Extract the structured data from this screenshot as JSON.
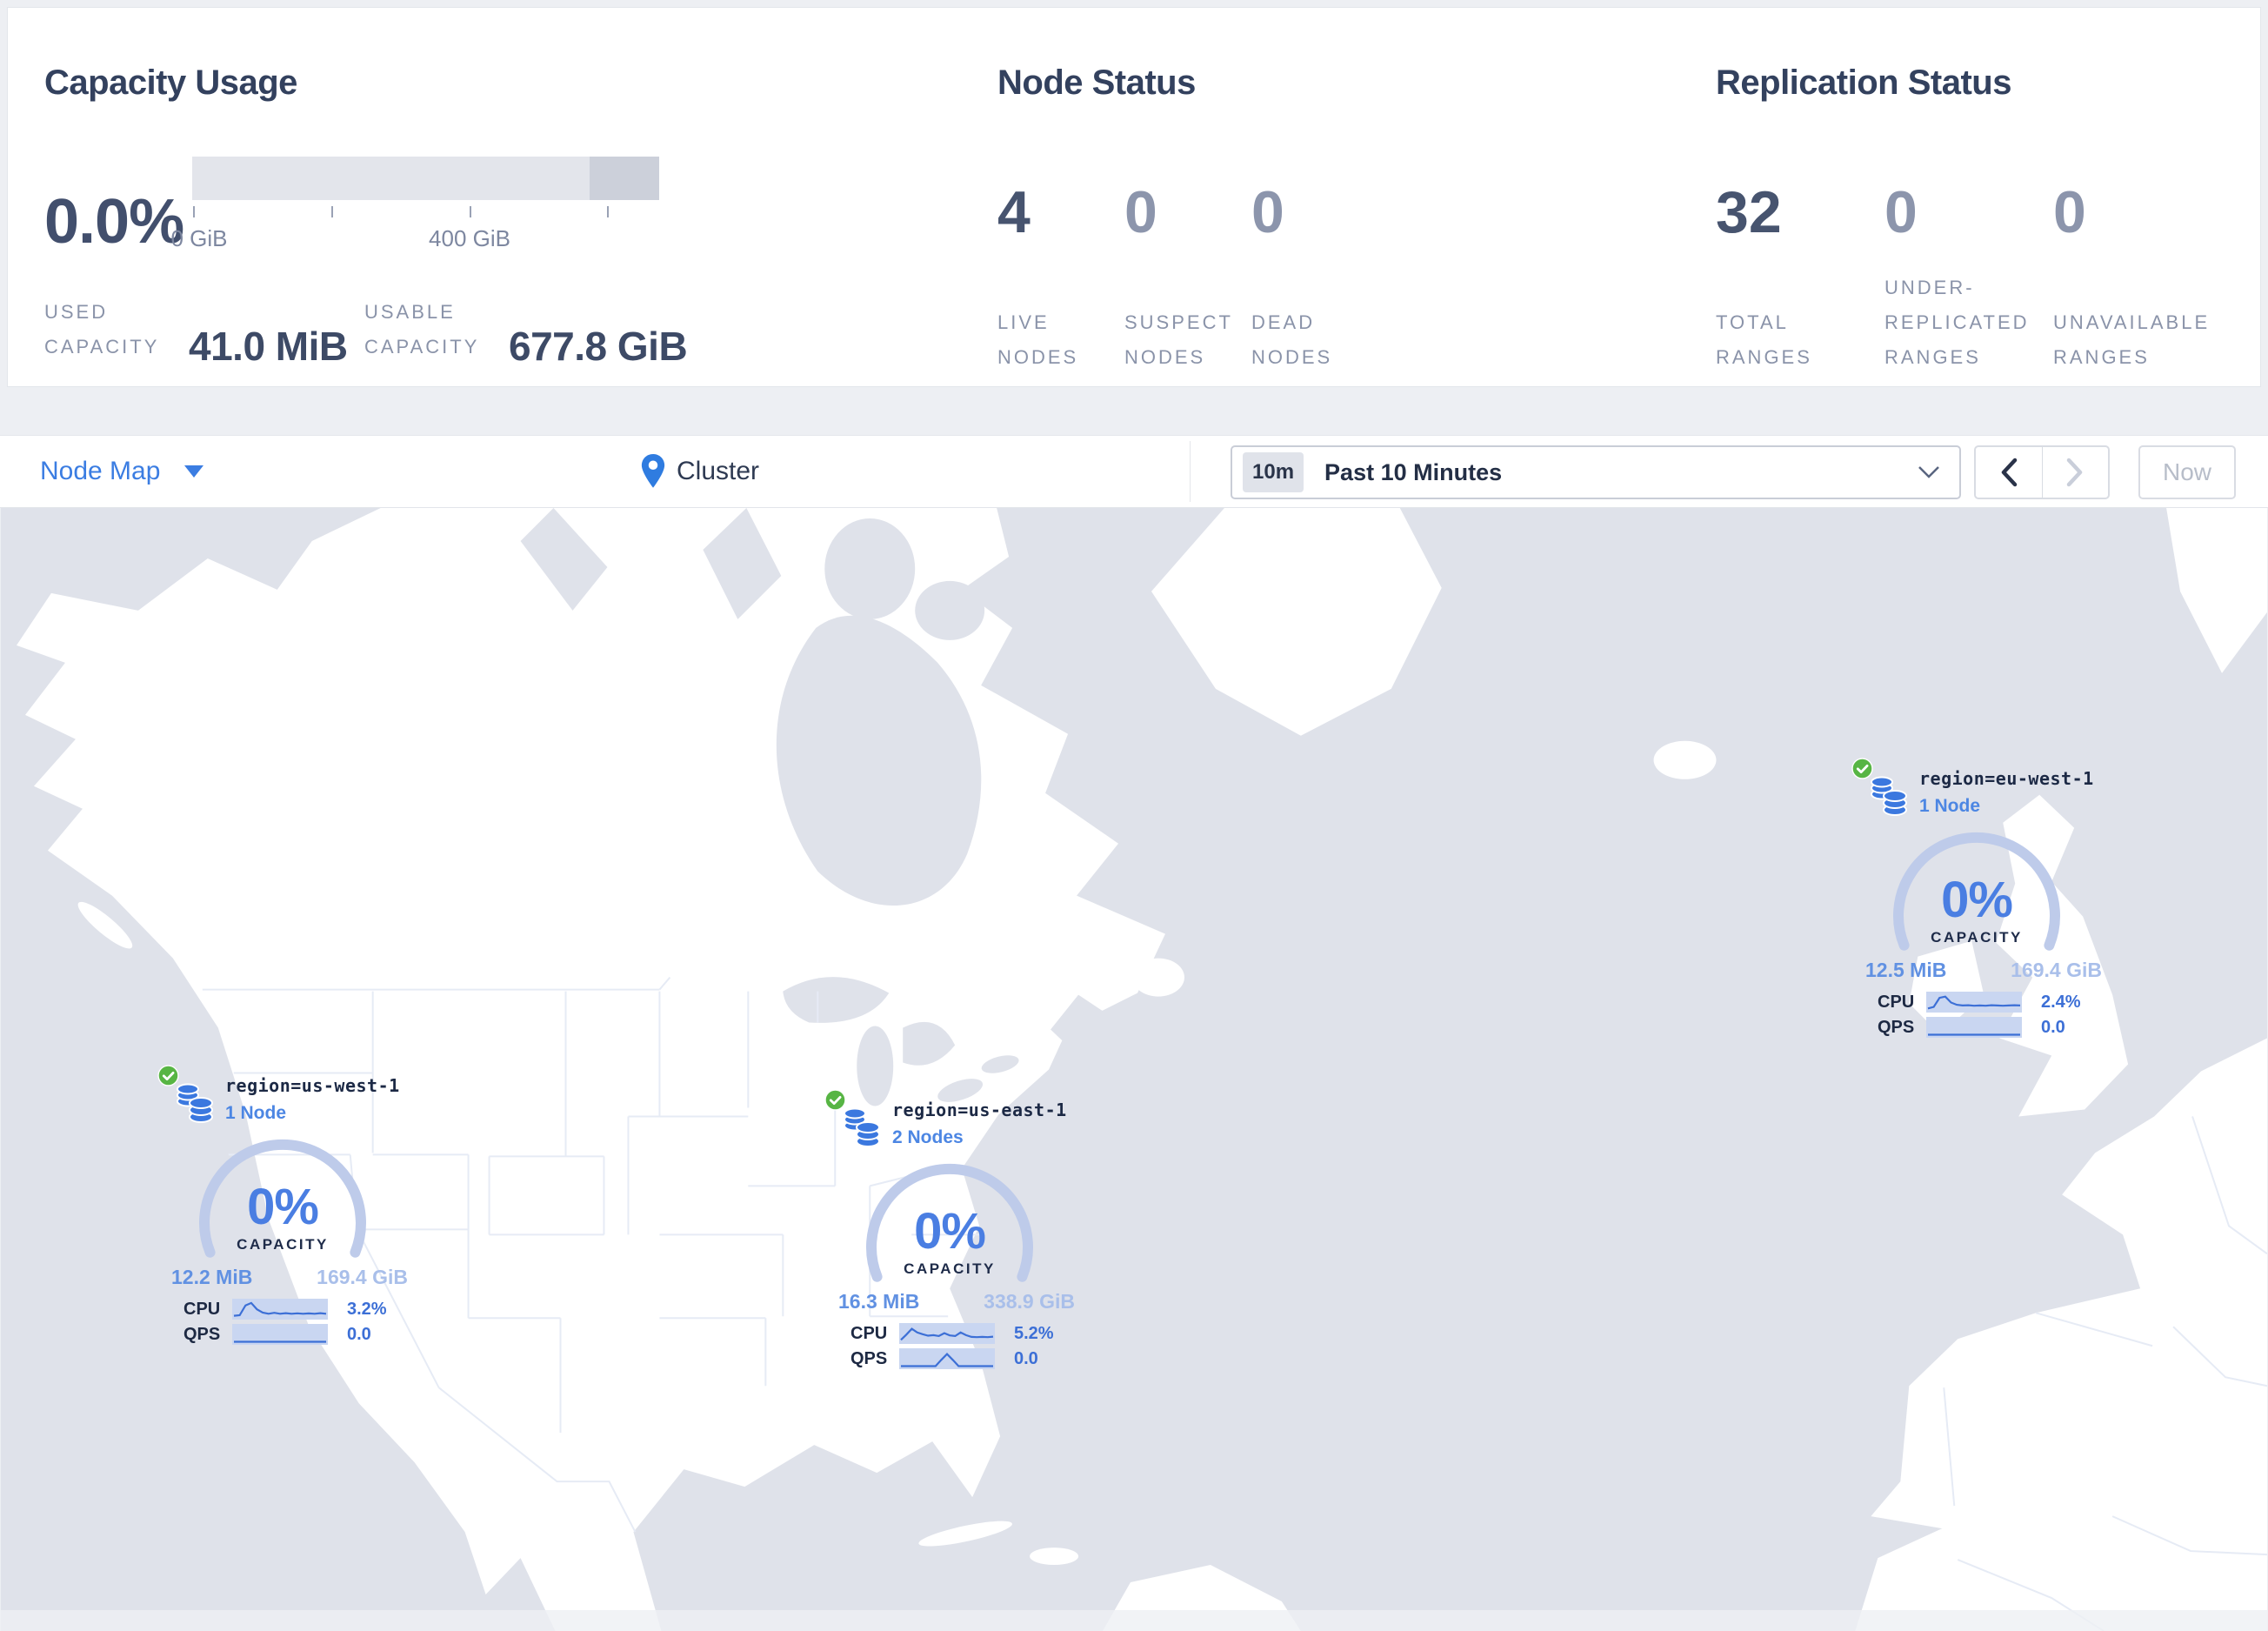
{
  "stats": {
    "capacity_usage": {
      "title": "Capacity Usage",
      "percent": "0.0%",
      "tick_label_0": "0 GiB",
      "tick_label_400": "400 GiB",
      "used_label": "USED CAPACITY",
      "used_value": "41.0 MiB",
      "usable_label": "USABLE CAPACITY",
      "usable_value": "677.8 GiB"
    },
    "node_status": {
      "title": "Node Status",
      "live_value": "4",
      "live_label": "LIVE NODES",
      "suspect_value": "0",
      "suspect_label": "SUSPECT NODES",
      "dead_value": "0",
      "dead_label": "DEAD NODES"
    },
    "replication_status": {
      "title": "Replication Status",
      "total_value": "32",
      "total_label": "TOTAL RANGES",
      "under_value": "0",
      "under_label": "UNDER-REPLICATED RANGES",
      "unavailable_value": "0",
      "unavailable_label": "UNAVAILABLE RANGES"
    }
  },
  "toolbar": {
    "view_label": "Node Map",
    "breadcrumb": "Cluster",
    "time_badge": "10m",
    "time_label": "Past 10 Minutes",
    "now_label": "Now"
  },
  "regions": [
    {
      "label": "region=us-west-1",
      "nodes": "1 Node",
      "percent": "0%",
      "capacity_word": "CAPACITY",
      "used": "12.2 MiB",
      "capacity": "169.4 GiB",
      "cpu_label": "CPU",
      "cpu_value": "3.2%",
      "qps_label": "QPS",
      "qps_value": "0.0",
      "cpu_spark": [
        0.08,
        0.12,
        0.78,
        0.95,
        0.52,
        0.3,
        0.22,
        0.28,
        0.22,
        0.26,
        0.22,
        0.25,
        0.22,
        0.24,
        0.22,
        0.26,
        0.22
      ],
      "qps_spark": [
        0.03,
        0.03,
        0.03,
        0.03,
        0.03,
        0.03,
        0.03,
        0.03,
        0.03,
        0.03,
        0.03,
        0.03,
        0.03,
        0.03,
        0.03,
        0.03,
        0.03
      ]
    },
    {
      "label": "region=us-east-1",
      "nodes": "2 Nodes",
      "percent": "0%",
      "capacity_word": "CAPACITY",
      "used": "16.3 MiB",
      "capacity": "338.9 GiB",
      "cpu_label": "CPU",
      "cpu_value": "5.2%",
      "qps_label": "QPS",
      "qps_value": "0.0",
      "cpu_spark": [
        0.1,
        0.45,
        0.85,
        0.6,
        0.48,
        0.38,
        0.42,
        0.36,
        0.55,
        0.4,
        0.36,
        0.6,
        0.42,
        0.3,
        0.28,
        0.3,
        0.28,
        0.32
      ],
      "qps_spark": [
        0.03,
        0.03,
        0.03,
        0.03,
        0.03,
        0.03,
        0.03,
        0.45,
        0.85,
        0.45,
        0.03,
        0.03,
        0.03,
        0.03,
        0.03,
        0.03,
        0.03
      ]
    },
    {
      "label": "region=eu-west-1",
      "nodes": "1 Node",
      "percent": "0%",
      "capacity_word": "CAPACITY",
      "used": "12.5 MiB",
      "capacity": "169.4 GiB",
      "cpu_label": "CPU",
      "cpu_value": "2.4%",
      "qps_label": "QPS",
      "qps_value": "0.0",
      "cpu_spark": [
        0.1,
        0.2,
        0.82,
        0.9,
        0.5,
        0.35,
        0.3,
        0.32,
        0.28,
        0.3,
        0.28,
        0.32,
        0.3,
        0.28,
        0.3,
        0.32,
        0.3
      ],
      "qps_spark": [
        0.03,
        0.03,
        0.03,
        0.03,
        0.03,
        0.03,
        0.03,
        0.03,
        0.03,
        0.03,
        0.03,
        0.03,
        0.03,
        0.03,
        0.03,
        0.03,
        0.03
      ]
    }
  ],
  "colors": {
    "accent_blue": "#3b7de2",
    "gauge_blue": "#4a7ee2",
    "arc": "#becbea",
    "green_check": "#57b544",
    "db_icon_blue": "#3b78df",
    "water": "#dfe2ea",
    "land": "#ffffff"
  }
}
